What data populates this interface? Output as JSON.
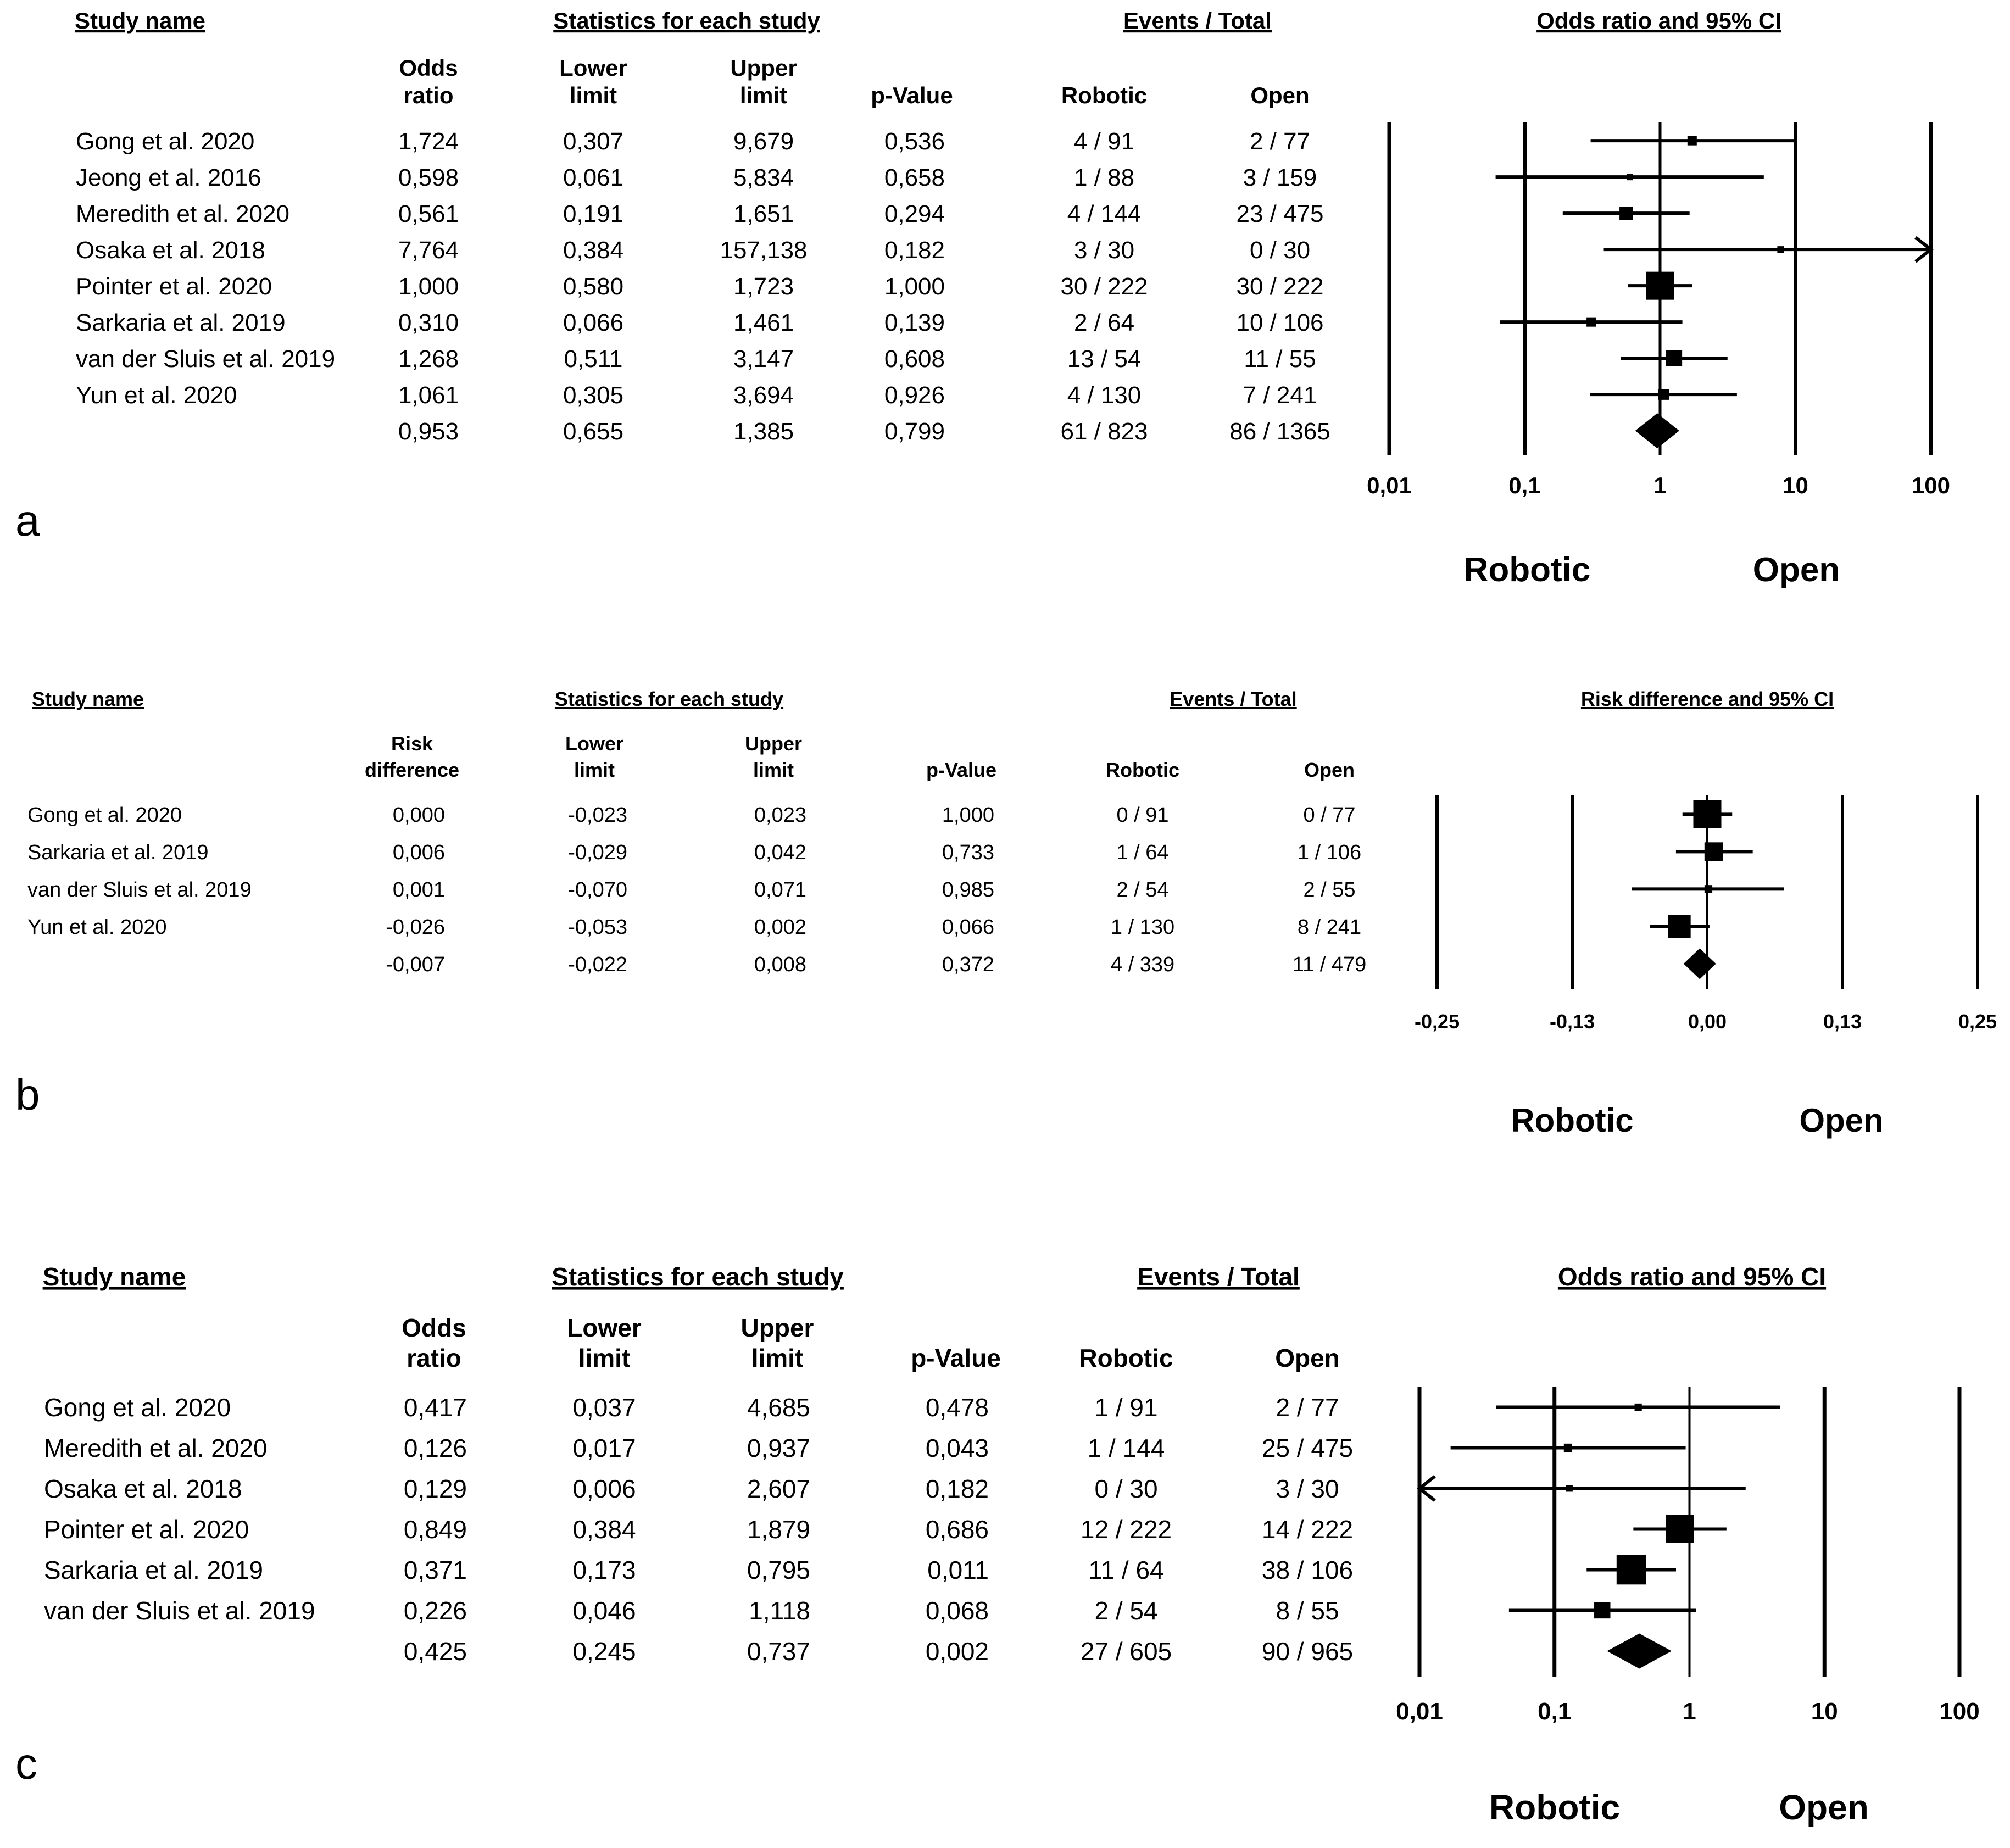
{
  "panels": [
    {
      "letter": "a",
      "header": {
        "study": "Study name",
        "stats": "Statistics for each study",
        "events": "Events / Total",
        "plot": "Odds ratio and 95% CI"
      },
      "columns": [
        "Odds ratio",
        "Lower limit",
        "Upper limit",
        "p-Value",
        "Robotic",
        "Open"
      ],
      "column_heads": [
        [
          "Odds",
          "ratio"
        ],
        [
          "Lower",
          "limit"
        ],
        [
          "Upper",
          "limit"
        ],
        [
          "",
          "p-Value"
        ],
        [
          "",
          "Robotic"
        ],
        [
          "",
          "Open"
        ]
      ],
      "footer_labels": {
        "left": "Robotic",
        "right": "Open"
      }
    },
    {
      "letter": "b",
      "header": {
        "study": "Study name",
        "stats": "Statistics for each study",
        "events": "Events / Total",
        "plot": "Risk difference and 95% CI"
      },
      "columns": [
        "Risk difference",
        "Lower limit",
        "Upper limit",
        "p-Value",
        "Robotic",
        "Open"
      ],
      "column_heads": [
        [
          "Risk",
          "difference"
        ],
        [
          "Lower",
          "limit"
        ],
        [
          "Upper",
          "limit"
        ],
        [
          "",
          "p-Value"
        ],
        [
          "",
          "Robotic"
        ],
        [
          "",
          "Open"
        ]
      ],
      "footer_labels": {
        "left": "Robotic",
        "right": "Open"
      }
    },
    {
      "letter": "c",
      "header": {
        "study": "Study name",
        "stats": "Statistics for each study",
        "events": "Events / Total",
        "plot": "Odds ratio and 95% CI"
      },
      "columns": [
        "Odds ratio",
        "Lower limit",
        "Upper limit",
        "p-Value",
        "Robotic",
        "Open"
      ],
      "column_heads": [
        [
          "Odds",
          "ratio"
        ],
        [
          "Lower",
          "limit"
        ],
        [
          "Upper",
          "limit"
        ],
        [
          "",
          "p-Value"
        ],
        [
          "",
          "Robotic"
        ],
        [
          "",
          "Open"
        ]
      ],
      "footer_labels": {
        "left": "Robotic",
        "right": "Open"
      }
    }
  ],
  "chart_data": [
    {
      "type": "forest",
      "measure": "Odds ratio",
      "scale": "log",
      "xlim": [
        0.01,
        100
      ],
      "ticks": [
        0.01,
        0.1,
        1,
        10,
        100
      ],
      "tick_labels": [
        "0,01",
        "0,1",
        "1",
        "10",
        "100"
      ],
      "rows": [
        {
          "study": "Gong et al. 2020",
          "cells": [
            "1,724",
            "0,307",
            "9,679",
            "0,536",
            "4 / 91",
            "2 / 77"
          ],
          "estimate": 1.724,
          "lower": 0.307,
          "upper": 9.679,
          "weight": 1
        },
        {
          "study": "Jeong et al. 2016",
          "cells": [
            "0,598",
            "0,061",
            "5,834",
            "0,658",
            "1 / 88",
            "3 / 159"
          ],
          "estimate": 0.598,
          "lower": 0.061,
          "upper": 5.834,
          "weight": 0.25
        },
        {
          "study": "Meredith et al. 2020",
          "cells": [
            "0,561",
            "0,191",
            "1,651",
            "0,294",
            "4 / 144",
            "23 / 475"
          ],
          "estimate": 0.561,
          "lower": 0.191,
          "upper": 1.651,
          "weight": 2
        },
        {
          "study": "Osaka et al. 2018",
          "cells": [
            "7,764",
            "0,384",
            "157,138",
            "0,182",
            "3 / 30",
            "0 / 30"
          ],
          "estimate": 7.764,
          "lower": 0.384,
          "upper": 157.138,
          "weight": 0.25,
          "arrow_right": true
        },
        {
          "study": "Pointer et al. 2020",
          "cells": [
            "1,000",
            "0,580",
            "1,723",
            "1,000",
            "30 / 222",
            "30 / 222"
          ],
          "estimate": 1.0,
          "lower": 0.58,
          "upper": 1.723,
          "weight": 9
        },
        {
          "study": "Sarkaria et al. 2019",
          "cells": [
            "0,310",
            "0,066",
            "1,461",
            "0,139",
            "2 / 64",
            "10 / 106"
          ],
          "estimate": 0.31,
          "lower": 0.066,
          "upper": 1.461,
          "weight": 1
        },
        {
          "study": "van der Sluis et al. 2019",
          "cells": [
            "1,268",
            "0,511",
            "3,147",
            "0,608",
            "13 / 54",
            "11 / 55"
          ],
          "estimate": 1.268,
          "lower": 0.511,
          "upper": 3.147,
          "weight": 3
        },
        {
          "study": "Yun et al. 2020",
          "cells": [
            "1,061",
            "0,305",
            "3,694",
            "0,926",
            "4 / 130",
            "7 / 241"
          ],
          "estimate": 1.061,
          "lower": 0.305,
          "upper": 3.694,
          "weight": 1.3
        }
      ],
      "summary": {
        "cells": [
          "0,953",
          "0,655",
          "1,385",
          "0,799",
          "61 / 823",
          "86 / 1365"
        ],
        "estimate": 0.953,
        "lower": 0.655,
        "upper": 1.385
      }
    },
    {
      "type": "forest",
      "measure": "Risk difference",
      "scale": "linear",
      "xlim": [
        -0.25,
        0.25
      ],
      "ticks": [
        -0.25,
        -0.125,
        0,
        0.125,
        0.25
      ],
      "tick_labels": [
        "-0,25",
        "-0,13",
        "0,00",
        "0,13",
        "0,25"
      ],
      "rows": [
        {
          "study": "Gong et al. 2020",
          "cells": [
            "0,000",
            "-0,023",
            "0,023",
            "1,000",
            "0 / 91",
            "0 / 77"
          ],
          "estimate": 0.0,
          "lower": -0.023,
          "upper": 0.023,
          "weight": 9
        },
        {
          "study": "Sarkaria et al. 2019",
          "cells": [
            "0,006",
            "-0,029",
            "0,042",
            "0,733",
            "1 / 64",
            "1 / 106"
          ],
          "estimate": 0.006,
          "lower": -0.029,
          "upper": 0.042,
          "weight": 4
        },
        {
          "study": "van der Sluis et al. 2019",
          "cells": [
            "0,001",
            "-0,070",
            "0,071",
            "0,985",
            "2 / 54",
            "2 / 55"
          ],
          "estimate": 0.001,
          "lower": -0.07,
          "upper": 0.071,
          "weight": 0.7
        },
        {
          "study": "Yun et al. 2020",
          "cells": [
            "-0,026",
            "-0,053",
            "0,002",
            "0,066",
            "1 / 130",
            "8 / 241"
          ],
          "estimate": -0.026,
          "lower": -0.053,
          "upper": 0.002,
          "weight": 6
        }
      ],
      "summary": {
        "cells": [
          "-0,007",
          "-0,022",
          "0,008",
          "0,372",
          "4 / 339",
          "11 / 479"
        ],
        "estimate": -0.007,
        "lower": -0.022,
        "upper": 0.008
      }
    },
    {
      "type": "forest",
      "measure": "Odds ratio",
      "scale": "log",
      "xlim": [
        0.01,
        100
      ],
      "ticks": [
        0.01,
        0.1,
        1,
        10,
        100
      ],
      "tick_labels": [
        "0,01",
        "0,1",
        "1",
        "10",
        "100"
      ],
      "rows": [
        {
          "study": "Gong et al. 2020",
          "cells": [
            "0,417",
            "0,037",
            "4,685",
            "0,478",
            "1 / 91",
            "2 / 77"
          ],
          "estimate": 0.417,
          "lower": 0.037,
          "upper": 4.685,
          "weight": 0.6
        },
        {
          "study": "Meredith et al. 2020",
          "cells": [
            "0,126",
            "0,017",
            "0,937",
            "0,043",
            "1 / 144",
            "25 / 475"
          ],
          "estimate": 0.126,
          "lower": 0.017,
          "upper": 0.937,
          "weight": 0.8
        },
        {
          "study": "Osaka et al. 2018",
          "cells": [
            "0,129",
            "0,006",
            "2,607",
            "0,182",
            "0 / 30",
            "3 / 30"
          ],
          "estimate": 0.129,
          "lower": 0.006,
          "upper": 2.607,
          "weight": 0.3,
          "arrow_left": true
        },
        {
          "study": "Pointer et al. 2020",
          "cells": [
            "0,849",
            "0,384",
            "1,879",
            "0,686",
            "12 / 222",
            "14 / 222"
          ],
          "estimate": 0.849,
          "lower": 0.384,
          "upper": 1.879,
          "weight": 9
        },
        {
          "study": "Sarkaria et al. 2019",
          "cells": [
            "0,371",
            "0,173",
            "0,795",
            "0,011",
            "11 / 64",
            "38 / 106"
          ],
          "estimate": 0.371,
          "lower": 0.173,
          "upper": 0.795,
          "weight": 10
        },
        {
          "study": "van der Sluis et al. 2019",
          "cells": [
            "0,226",
            "0,046",
            "1,118",
            "0,068",
            "2 / 54",
            "8 / 55"
          ],
          "estimate": 0.226,
          "lower": 0.046,
          "upper": 1.118,
          "weight": 3
        }
      ],
      "summary": {
        "cells": [
          "0,425",
          "0,245",
          "0,737",
          "0,002",
          "27 / 605",
          "90 / 965"
        ],
        "estimate": 0.425,
        "lower": 0.245,
        "upper": 0.737
      }
    }
  ]
}
